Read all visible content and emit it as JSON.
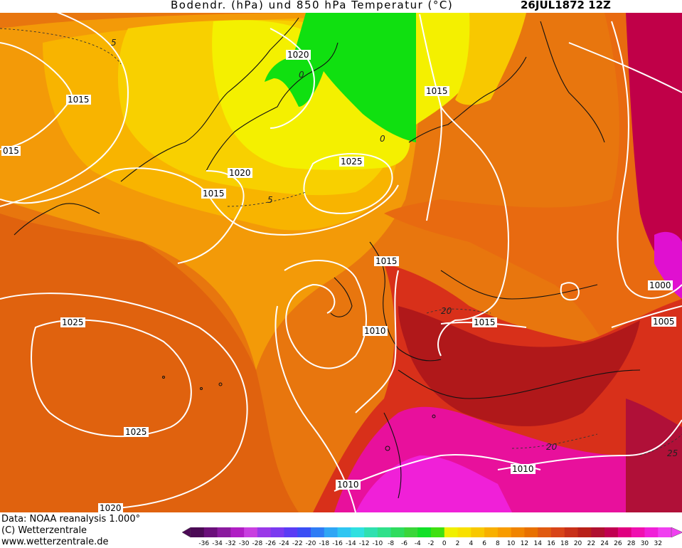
{
  "header": {
    "title": "Bodendr. (hPa) und 850 hPa Temperatur (°C)",
    "datetime": "26JUL1872 12Z"
  },
  "footer": {
    "data_source": "Data: NOAA reanalysis 1.000°",
    "copyright": "(C) Wetterzentrale",
    "website": "www.wetterzentrale.de"
  },
  "colorbar": {
    "ticks": [
      "-36",
      "-34",
      "-32",
      "-30",
      "-28",
      "-26",
      "-24",
      "-22",
      "-20",
      "-18",
      "-16",
      "-14",
      "-12",
      "-10",
      "-8",
      "-6",
      "-4",
      "-2",
      "0",
      "2",
      "4",
      "6",
      "8",
      "10",
      "12",
      "14",
      "16",
      "18",
      "20",
      "22",
      "24",
      "26",
      "28",
      "30",
      "32"
    ],
    "colors": [
      "#4b0a55",
      "#6a0f7a",
      "#8a1a9e",
      "#b01ec4",
      "#c83fe0",
      "#9a38e8",
      "#7a3af0",
      "#5a3cf5",
      "#3a4ef5",
      "#2e7cf5",
      "#2ea6f5",
      "#2ec6f2",
      "#2ee0e0",
      "#2ee0b0",
      "#2ee08a",
      "#2edc5e",
      "#3ad63a",
      "#12e028",
      "#40e010",
      "#f0f000",
      "#f8e000",
      "#f8c800",
      "#f8b000",
      "#f89c00",
      "#f08400",
      "#e87000",
      "#e05a10",
      "#d84418",
      "#c83018",
      "#b82018",
      "#b01030",
      "#c00050",
      "#e00080",
      "#f010b0",
      "#f020d8",
      "#f040f0"
    ]
  },
  "map": {
    "isobar_labels": [
      "1020",
      "1015",
      "015",
      "1020",
      "1015",
      "1025",
      "1015",
      "1010",
      "1025",
      "1025",
      "1015",
      "1000",
      "1005",
      "1010",
      "1010",
      "1020"
    ],
    "isotherm_labels": [
      "5",
      "0",
      "0",
      "5",
      "20",
      "20",
      "25"
    ]
  }
}
